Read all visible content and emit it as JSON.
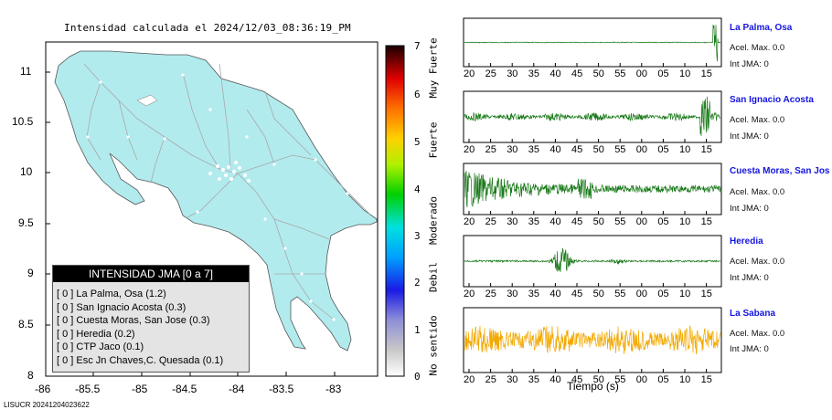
{
  "map": {
    "title": "Intensidad calculada el 2024/12/03_08:36:19_PM",
    "y_ticks": [
      "11",
      "10.5",
      "10",
      "9.5",
      "9",
      "8.5",
      "8"
    ],
    "x_ticks": [
      "-86",
      "-85.5",
      "-85",
      "-84.5",
      "-84",
      "-83.5",
      "-83"
    ],
    "land_color": "#b2ebee",
    "road_color": "#a8a8a8"
  },
  "legend": {
    "header": "INTENSIDAD JMA [0 a 7]",
    "items": [
      "[ 0 ]  La Palma, Osa (1.2)",
      "[ 0 ]  San Ignacio Acosta (0.3)",
      "[ 0 ]  Cuesta Moras, San Jose (0.3)",
      "[ 0 ]  Heredia (0.2)",
      "[ 0 ]  CTP Jaco (0.1)",
      "[ 0 ]  Esc Jn Chaves,C. Quesada (0.1)"
    ]
  },
  "colorbar": {
    "labels": [
      "7",
      "6",
      "5",
      "4",
      "3",
      "2",
      "1",
      "0"
    ],
    "categories": [
      "Muy Fuerte",
      "Fuerte",
      "Moderado",
      "Debil",
      "No sentido"
    ]
  },
  "stations": [
    {
      "name": "La Palma, Osa",
      "accel": "Acel. Max. 0.0",
      "jma": "Int JMA: 0",
      "color": "#1a7a1a"
    },
    {
      "name": "San Ignacio Acosta",
      "accel": "Acel. Max. 0.0",
      "jma": "Int JMA: 0",
      "color": "#1a7a1a"
    },
    {
      "name": "Cuesta Moras, San Jose",
      "accel": "Acel. Max. 0.0",
      "jma": "Int JMA: 0",
      "color": "#1a7a1a"
    },
    {
      "name": "Heredia",
      "accel": "Acel. Max. 0.0",
      "jma": "Int JMA: 0",
      "color": "#1a7a1a"
    },
    {
      "name": "La Sabana",
      "accel": "Acel. Max. 0.0",
      "jma": "Int JMA: 0",
      "color": "#f2a900"
    }
  ],
  "waveform_ticks": [
    "20",
    "25",
    "30",
    "35",
    "40",
    "45",
    "50",
    "55",
    "00",
    "05",
    "10",
    "15"
  ],
  "x_axis_title": "Tiempo (s)",
  "footer_id": "LISUCR 20241204023622"
}
